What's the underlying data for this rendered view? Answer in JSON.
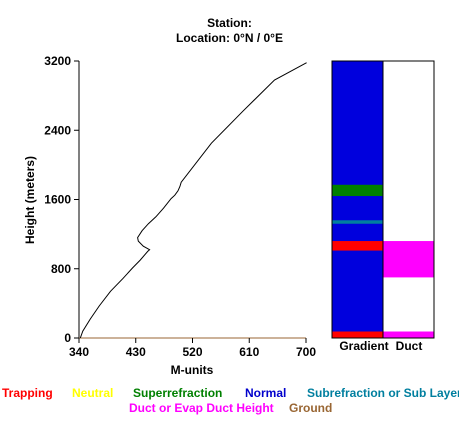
{
  "header": {
    "station": "Station:",
    "location": "Location:   0°N /   0°E"
  },
  "chart_data": {
    "type": "line",
    "xlabel": "M-units",
    "ylabel": "Height (meters)",
    "xlim": [
      340,
      700
    ],
    "ylim": [
      0,
      3200
    ],
    "xticks": [
      "340",
      "430",
      "520",
      "610",
      "700"
    ],
    "yticks": [
      "0",
      "800",
      "1600",
      "2400",
      "3200"
    ],
    "series": [
      {
        "x": [
          342,
          346,
          358,
          372,
          390,
          410,
          425,
          437,
          449,
          452,
          442,
          434,
          433,
          440,
          450,
          462,
          474,
          486,
          492,
          497,
          500,
          502,
          550,
          600,
          650,
          701
        ],
        "y": [
          0,
          80,
          220,
          370,
          540,
          690,
          810,
          900,
          1000,
          1020,
          1060,
          1120,
          1160,
          1240,
          1320,
          1400,
          1500,
          1610,
          1650,
          1700,
          1750,
          1800,
          2250,
          2620,
          2980,
          3180
        ]
      }
    ]
  },
  "panels": {
    "gradient_label": "Gradient",
    "duct_label": "Duct",
    "gradient_bands": [
      {
        "from": 0,
        "to": 75,
        "class": "Trapping"
      },
      {
        "from": 1010,
        "to": 1120,
        "class": "Trapping"
      },
      {
        "from": 1320,
        "to": 1360,
        "class": "Subrefraction or Sub Layer"
      },
      {
        "from": 1640,
        "to": 1770,
        "class": "Superrefraction"
      }
    ],
    "duct_bands": [
      {
        "from": 0,
        "to": 75
      },
      {
        "from": 700,
        "to": 1120
      }
    ]
  },
  "legend": [
    {
      "label": "Trapping",
      "color": "#ff0000"
    },
    {
      "label": "Neutral",
      "color": "#ffff00"
    },
    {
      "label": "Superrefraction",
      "color": "#008000"
    },
    {
      "label": "Normal",
      "color": "#0000cc"
    },
    {
      "label": "Subrefraction or Sub Layer",
      "color": "#007f9f"
    },
    {
      "label": "Duct or Evap Duct Height",
      "color": "#ff00ff"
    },
    {
      "label": "Ground",
      "color": "#996633"
    }
  ]
}
